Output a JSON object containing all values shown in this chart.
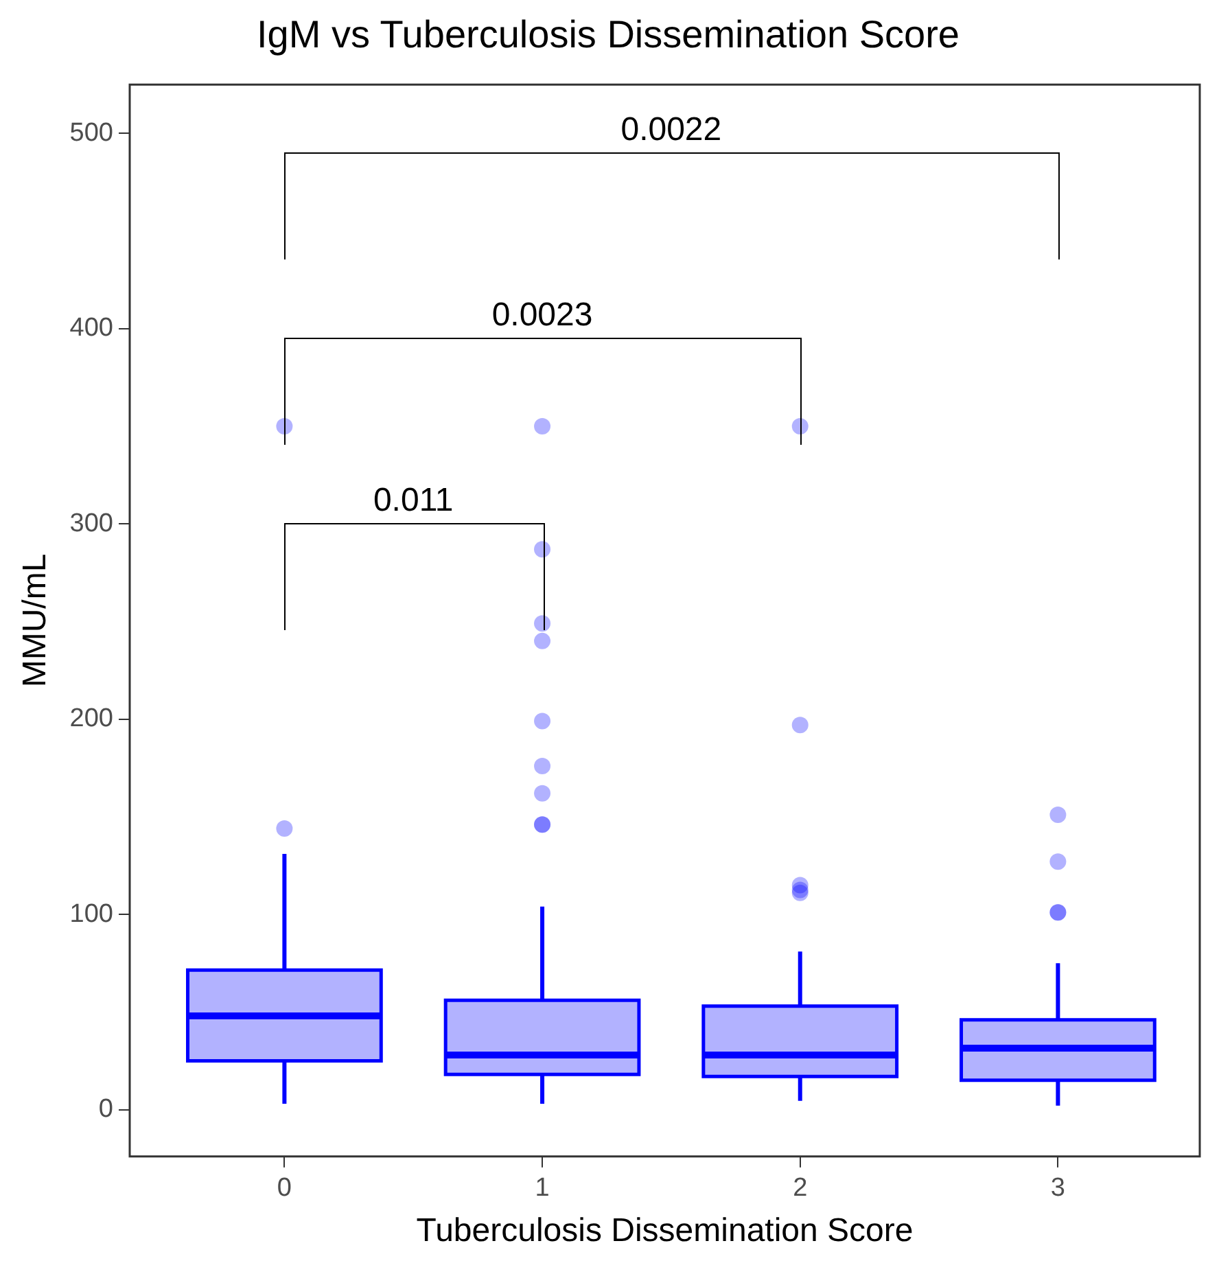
{
  "chart_data": {
    "type": "box",
    "title": "IgM vs Tuberculosis Dissemination Score",
    "xlabel": "Tuberculosis Dissemination Score",
    "ylabel": "MMU/mL",
    "categories": [
      "0",
      "1",
      "2",
      "3"
    ],
    "color": "#0000ff",
    "boxes": [
      {
        "low": 3,
        "q1": 25,
        "median": 48,
        "q3": 71.5,
        "high": 131,
        "outliers": [
          144,
          350
        ]
      },
      {
        "low": 3,
        "q1": 18,
        "median": 28,
        "q3": 56,
        "high": 104,
        "outliers": [
          146,
          146,
          162,
          176,
          199,
          240,
          249,
          287,
          350
        ]
      },
      {
        "low": 4.5,
        "q1": 17,
        "median": 28,
        "q3": 53,
        "high": 81,
        "outliers": [
          111,
          112.5,
          115,
          197,
          350
        ]
      },
      {
        "low": 2,
        "q1": 15,
        "median": 31.5,
        "q3": 46,
        "high": 75,
        "outliers": [
          101,
          101,
          127,
          151
        ]
      }
    ],
    "ylim": [
      -24,
      525
    ],
    "yticks": [
      0,
      100,
      200,
      300,
      400,
      500
    ],
    "annotations": [
      "0.011",
      "0.0023",
      "0.0022"
    ]
  }
}
